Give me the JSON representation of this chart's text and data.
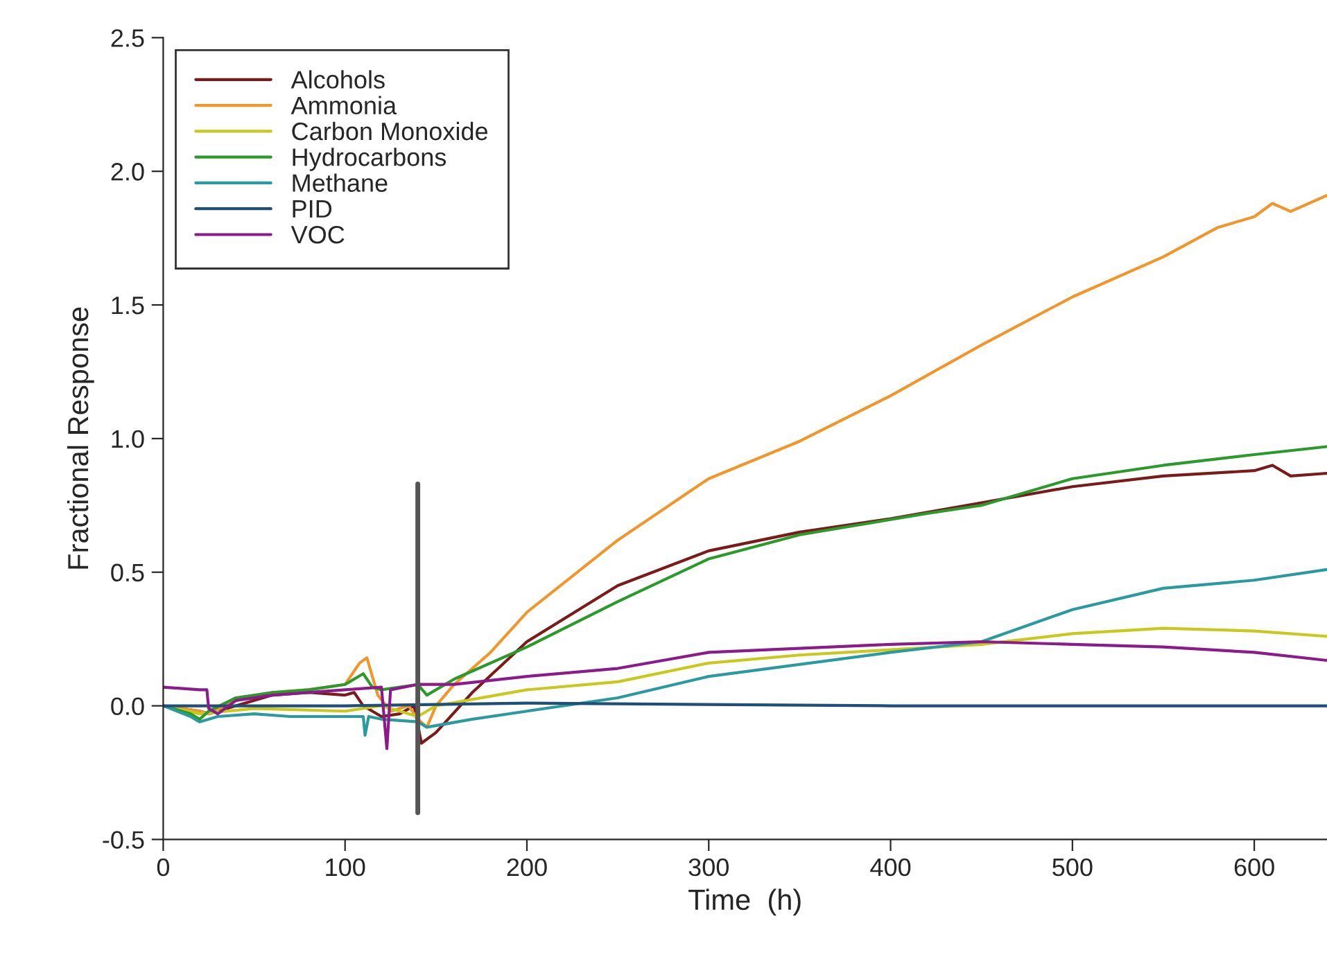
{
  "chart_data": {
    "type": "line",
    "xlabel": "Time  (h)",
    "ylabel": "Fractional Response",
    "xlim": [
      0,
      640
    ],
    "ylim": [
      -0.5,
      2.5
    ],
    "xticks": [
      0,
      100,
      200,
      300,
      400,
      500,
      600
    ],
    "yticks": [
      {
        "value": -0.5,
        "label": "-0.5"
      },
      {
        "value": 0,
        "label": "0.0"
      },
      {
        "value": 0.5,
        "label": "0.5"
      },
      {
        "value": 1,
        "label": "1.0"
      },
      {
        "value": 1.5,
        "label": "1.5"
      },
      {
        "value": 2,
        "label": "2.0"
      },
      {
        "value": 2.5,
        "label": "2.5"
      }
    ],
    "grid": false,
    "legend": "top left",
    "line_style": "solid",
    "marker": "none",
    "series": [
      {
        "name": "Alcohols",
        "color": "#7b1a1a",
        "x": [
          0,
          20,
          25,
          40,
          60,
          80,
          100,
          105,
          110,
          120,
          130,
          138,
          142,
          150,
          170,
          200,
          250,
          300,
          350,
          400,
          450,
          500,
          550,
          600,
          610,
          620,
          640
        ],
        "values": [
          0,
          -0.02,
          -0.03,
          0,
          0.04,
          0.05,
          0.04,
          0.05,
          0,
          -0.04,
          -0.03,
          0,
          -0.14,
          -0.1,
          0.05,
          0.24,
          0.45,
          0.58,
          0.65,
          0.7,
          0.76,
          0.82,
          0.86,
          0.88,
          0.9,
          0.86,
          0.87
        ]
      },
      {
        "name": "Ammonia",
        "color": "#f0962a",
        "x": [
          0,
          10,
          20,
          25,
          40,
          60,
          80,
          100,
          108,
          112,
          118,
          125,
          135,
          140,
          145,
          150,
          160,
          180,
          200,
          250,
          300,
          350,
          400,
          450,
          500,
          550,
          580,
          600,
          610,
          620,
          640
        ],
        "values": [
          0,
          -0.01,
          -0.02,
          -0.03,
          0.02,
          0.05,
          0.06,
          0.08,
          0.16,
          0.18,
          0.04,
          -0.02,
          0,
          -0.05,
          -0.08,
          0,
          0.08,
          0.2,
          0.35,
          0.62,
          0.85,
          0.99,
          1.16,
          1.35,
          1.53,
          1.68,
          1.79,
          1.83,
          1.88,
          1.85,
          1.91
        ]
      },
      {
        "name": "Carbon Monoxide",
        "color": "#c8c81e",
        "x": [
          0,
          20,
          50,
          100,
          120,
          140,
          150,
          200,
          250,
          300,
          350,
          400,
          450,
          500,
          550,
          600,
          640
        ],
        "values": [
          0,
          -0.03,
          -0.01,
          -0.02,
          0,
          -0.04,
          0,
          0.06,
          0.09,
          0.16,
          0.19,
          0.21,
          0.23,
          0.27,
          0.29,
          0.28,
          0.26
        ]
      },
      {
        "name": "Hydrocarbons",
        "color": "#2a9a2a",
        "x": [
          0,
          15,
          20,
          25,
          40,
          60,
          80,
          100,
          110,
          115,
          120,
          140,
          145,
          160,
          200,
          250,
          300,
          350,
          420,
          450,
          500,
          550,
          600,
          640
        ],
        "values": [
          0,
          -0.03,
          -0.05,
          -0.02,
          0.03,
          0.05,
          0.06,
          0.08,
          0.12,
          0.07,
          0.06,
          0.08,
          0.04,
          0.1,
          0.22,
          0.39,
          0.55,
          0.64,
          0.72,
          0.75,
          0.85,
          0.9,
          0.94,
          0.97
        ]
      },
      {
        "name": "Methane",
        "color": "#2a9aa0",
        "x": [
          0,
          15,
          20,
          30,
          50,
          70,
          110,
          111,
          113,
          120,
          140,
          145,
          170,
          200,
          250,
          300,
          400,
          450,
          500,
          550,
          600,
          640
        ],
        "values": [
          0,
          -0.04,
          -0.06,
          -0.04,
          -0.03,
          -0.04,
          -0.04,
          -0.11,
          -0.04,
          -0.05,
          -0.06,
          -0.08,
          -0.05,
          -0.02,
          0.03,
          0.11,
          0.2,
          0.24,
          0.36,
          0.44,
          0.47,
          0.51
        ]
      },
      {
        "name": "PID",
        "color": "#1f4e79",
        "x": [
          0,
          100,
          200,
          400,
          640
        ],
        "values": [
          0,
          0,
          0.01,
          0,
          0
        ]
      },
      {
        "name": "VOC",
        "color": "#8b1a8b",
        "x": [
          0,
          20,
          24,
          25,
          30,
          40,
          60,
          100,
          120,
          123,
          125,
          140,
          160,
          200,
          250,
          300,
          400,
          450,
          500,
          550,
          600,
          640
        ],
        "values": [
          0.07,
          0.06,
          0.06,
          -0.01,
          -0.03,
          0.02,
          0.04,
          0.06,
          0.07,
          -0.16,
          0.06,
          0.08,
          0.08,
          0.11,
          0.14,
          0.2,
          0.23,
          0.24,
          0.23,
          0.22,
          0.2,
          0.17
        ]
      },
      {
        "color": "#555555",
        "x": [
          140,
          140
        ],
        "values": [
          -0.4,
          0.83
        ]
      }
    ]
  }
}
